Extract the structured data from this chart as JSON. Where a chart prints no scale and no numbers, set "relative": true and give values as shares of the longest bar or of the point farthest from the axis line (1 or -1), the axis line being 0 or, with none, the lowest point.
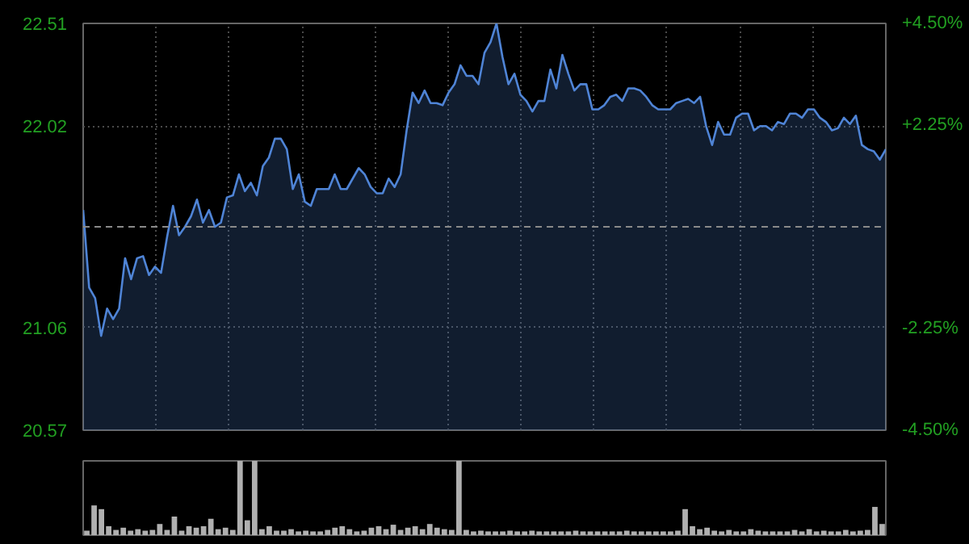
{
  "chart_data": [
    {
      "type": "area",
      "categories": [
        null,
        null,
        null,
        null,
        null,
        null,
        null,
        null,
        null,
        null,
        null,
        null,
        null,
        null,
        null,
        null,
        null,
        null,
        null,
        null,
        null,
        null,
        null,
        null,
        null,
        null,
        null,
        null,
        null,
        null,
        null,
        null,
        null,
        null,
        null,
        null,
        null,
        null,
        null,
        null,
        null,
        null,
        null,
        null,
        null,
        null,
        null,
        null,
        null,
        null,
        null,
        null,
        null,
        null,
        null,
        null,
        null,
        null,
        null,
        null,
        null,
        null,
        null,
        null,
        null,
        null,
        null,
        null,
        null,
        null,
        null,
        null,
        null,
        null,
        null,
        null,
        null,
        null,
        null,
        null,
        null,
        null,
        null,
        null,
        null,
        null,
        null,
        null,
        null,
        null,
        null,
        null,
        null,
        null,
        null,
        null,
        null,
        null,
        null,
        null,
        null,
        null,
        null,
        null,
        null,
        null,
        null,
        null,
        null,
        null,
        null,
        null,
        null,
        null,
        null,
        null,
        null,
        null,
        null,
        null,
        null,
        null,
        null,
        null,
        null,
        null,
        null,
        null,
        null,
        null,
        null,
        null,
        null,
        null,
        null
      ],
      "ylim": [
        20.57,
        22.51
      ],
      "yticks": [
        20.57,
        21.06,
        22.02,
        22.51
      ],
      "y2lim": [
        -4.5,
        4.5
      ],
      "y2ticks": [
        {
          "value": -4.5,
          "label": "-4.50%"
        },
        {
          "value": -2.25,
          "label": "-2.25%"
        },
        {
          "value": 2.25,
          "label": "+2.25%"
        },
        {
          "value": 4.5,
          "label": "+4.50%"
        }
      ],
      "grid": true,
      "ref_lines": [
        {
          "axis": "y",
          "value": 21.54,
          "color": "#8a8a8a",
          "line_style": "dashed"
        }
      ],
      "series": [
        {
          "color": "#4f84d6",
          "values": [
            21.62,
            21.25,
            21.2,
            21.02,
            21.15,
            21.1,
            21.15,
            21.39,
            21.29,
            21.39,
            21.4,
            21.31,
            21.35,
            21.32,
            21.49,
            21.64,
            21.5,
            21.54,
            21.59,
            21.67,
            21.56,
            21.62,
            21.54,
            21.56,
            21.68,
            21.69,
            21.79,
            21.71,
            21.75,
            21.69,
            21.83,
            21.87,
            21.96,
            21.96,
            21.91,
            21.72,
            21.79,
            21.66,
            21.64,
            21.72,
            21.72,
            21.72,
            21.79,
            21.72,
            21.72,
            21.77,
            21.82,
            21.79,
            21.73,
            21.7,
            21.7,
            21.77,
            21.73,
            21.79,
            22.0,
            22.18,
            22.13,
            22.19,
            22.13,
            22.13,
            22.12,
            22.18,
            22.22,
            22.31,
            22.26,
            22.26,
            22.22,
            22.37,
            22.42,
            22.51,
            22.35,
            22.22,
            22.27,
            22.17,
            22.14,
            22.09,
            22.14,
            22.14,
            22.29,
            22.2,
            22.36,
            22.27,
            22.19,
            22.22,
            22.22,
            22.1,
            22.1,
            22.12,
            22.16,
            22.17,
            22.14,
            22.2,
            22.2,
            22.19,
            22.16,
            22.12,
            22.1,
            22.1,
            22.1,
            22.13,
            22.14,
            22.15,
            22.13,
            22.16,
            22.02,
            21.93,
            22.04,
            21.98,
            21.98,
            22.06,
            22.08,
            22.08,
            22.0,
            22.02,
            22.02,
            22.0,
            22.04,
            22.03,
            22.08,
            22.08,
            22.06,
            22.1,
            22.1,
            22.06,
            22.04,
            22.0,
            22.01,
            22.06,
            22.03,
            22.07,
            21.93,
            21.91,
            21.9,
            21.86,
            21.91
          ]
        }
      ]
    },
    {
      "type": "bar",
      "relative": true,
      "color": "#b0b0b0",
      "categories": [
        null,
        null,
        null,
        null,
        null,
        null,
        null,
        null,
        null,
        null,
        null,
        null,
        null,
        null,
        null,
        null,
        null,
        null,
        null,
        null,
        null,
        null,
        null,
        null,
        null,
        null,
        null,
        null,
        null,
        null,
        null,
        null,
        null,
        null,
        null,
        null,
        null,
        null,
        null,
        null,
        null,
        null,
        null,
        null,
        null,
        null,
        null,
        null,
        null,
        null,
        null,
        null,
        null,
        null,
        null,
        null,
        null,
        null,
        null,
        null,
        null,
        null,
        null,
        null,
        null,
        null,
        null,
        null,
        null,
        null,
        null,
        null,
        null,
        null,
        null,
        null,
        null,
        null,
        null,
        null,
        null,
        null,
        null,
        null,
        null,
        null,
        null,
        null,
        null,
        null,
        null,
        null,
        null,
        null,
        null,
        null,
        null,
        null,
        null,
        null,
        null,
        null,
        null,
        null,
        null,
        null,
        null,
        null,
        null,
        null
      ],
      "values": [
        0.06,
        0.4,
        0.35,
        0.12,
        0.07,
        0.1,
        0.06,
        0.08,
        0.06,
        0.07,
        0.15,
        0.07,
        0.25,
        0.06,
        0.12,
        0.1,
        0.12,
        0.22,
        0.08,
        0.1,
        0.07,
        1.0,
        0.2,
        1.0,
        0.08,
        0.12,
        0.06,
        0.06,
        0.08,
        0.05,
        0.06,
        0.05,
        0.05,
        0.07,
        0.1,
        0.12,
        0.08,
        0.05,
        0.06,
        0.1,
        0.12,
        0.08,
        0.14,
        0.07,
        0.1,
        0.12,
        0.08,
        0.15,
        0.1,
        0.08,
        0.07,
        1.0,
        0.07,
        0.05,
        0.06,
        0.05,
        0.05,
        0.05,
        0.06,
        0.05,
        0.05,
        0.06,
        0.05,
        0.05,
        0.05,
        0.05,
        0.05,
        0.06,
        0.05,
        0.05,
        0.05,
        0.05,
        0.05,
        0.05,
        0.06,
        0.05,
        0.05,
        0.05,
        0.05,
        0.05,
        0.05,
        0.06,
        0.35,
        0.12,
        0.08,
        0.1,
        0.06,
        0.05,
        0.07,
        0.05,
        0.05,
        0.08,
        0.06,
        0.05,
        0.05,
        0.05,
        0.05,
        0.07,
        0.05,
        0.08,
        0.05,
        0.06,
        0.05,
        0.05,
        0.07,
        0.05,
        0.06,
        0.07,
        0.38,
        0.15
      ]
    }
  ]
}
